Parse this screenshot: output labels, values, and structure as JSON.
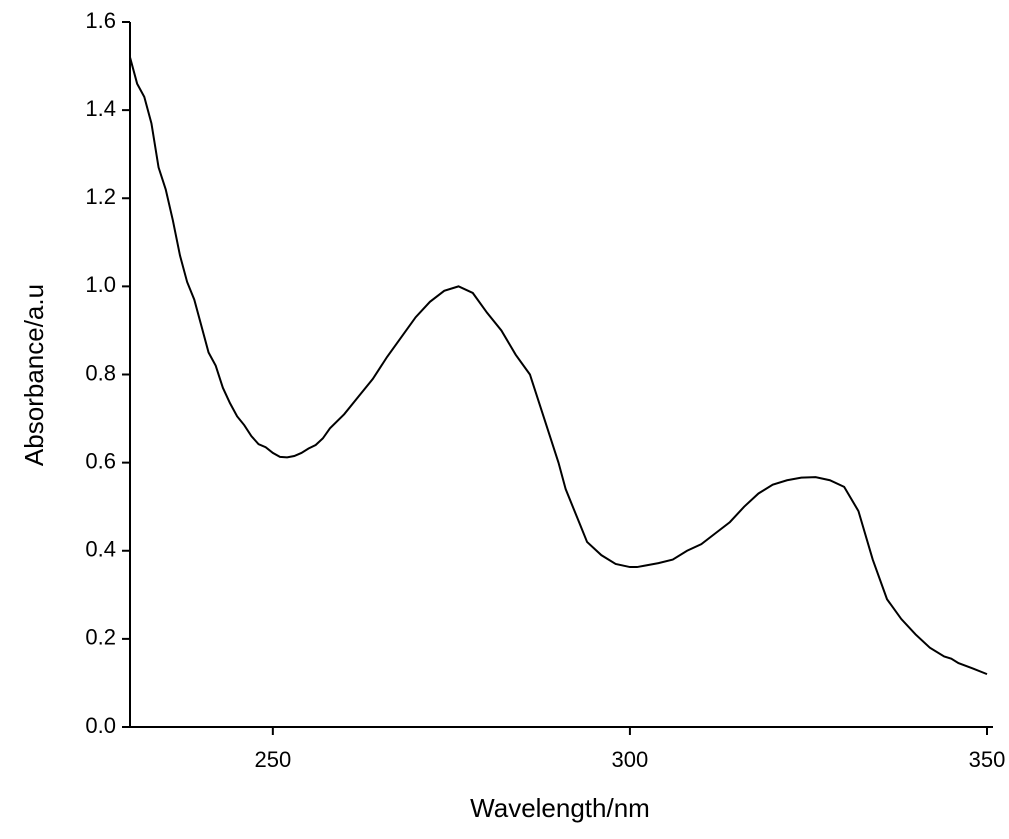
{
  "chart_data": {
    "type": "line",
    "x_label": "Wavelength/nm",
    "y_label": "Absorbance/a.u",
    "xlim": [
      230,
      350
    ],
    "xticks": [
      250,
      300,
      350
    ],
    "ylim": [
      0,
      1.6
    ],
    "yticks": [
      {
        "value": 0,
        "label": "0.0"
      },
      0.2,
      0.4,
      0.6,
      0.8,
      {
        "value": 1,
        "label": "1.0"
      },
      1.2,
      1.4,
      1.6
    ],
    "grid": false,
    "series": [
      {
        "color": "#000000",
        "x": [
          230,
          231,
          232,
          233,
          234,
          235,
          236,
          237,
          238,
          239,
          240,
          241,
          242,
          243,
          244,
          245,
          246,
          247,
          248,
          249,
          250,
          251,
          252,
          253,
          254,
          255,
          256,
          257,
          258,
          260,
          262,
          264,
          266,
          268,
          270,
          272,
          274,
          276,
          278,
          280,
          282,
          284,
          286,
          288,
          290,
          291,
          293,
          294,
          296,
          298,
          300,
          301,
          302,
          304,
          306,
          308,
          310,
          312,
          314,
          316,
          318,
          320,
          322,
          324,
          326,
          328,
          330,
          332,
          334,
          336,
          338,
          340,
          342,
          344,
          345,
          346,
          348,
          350
        ],
        "values": [
          1.52,
          1.46,
          1.43,
          1.37,
          1.27,
          1.22,
          1.15,
          1.07,
          1.01,
          0.97,
          0.91,
          0.85,
          0.82,
          0.77,
          0.735,
          0.705,
          0.685,
          0.66,
          0.642,
          0.635,
          0.622,
          0.613,
          0.612,
          0.615,
          0.622,
          0.632,
          0.64,
          0.655,
          0.678,
          0.71,
          0.75,
          0.79,
          0.84,
          0.885,
          0.93,
          0.965,
          0.99,
          1.0,
          0.985,
          0.94,
          0.9,
          0.845,
          0.8,
          0.7,
          0.6,
          0.54,
          0.46,
          0.42,
          0.39,
          0.37,
          0.363,
          0.363,
          0.366,
          0.372,
          0.38,
          0.4,
          0.415,
          0.44,
          0.465,
          0.5,
          0.53,
          0.55,
          0.56,
          0.566,
          0.567,
          0.56,
          0.545,
          0.49,
          0.38,
          0.29,
          0.245,
          0.21,
          0.18,
          0.16,
          0.155,
          0.145,
          0.133,
          0.12
        ]
      }
    ]
  }
}
